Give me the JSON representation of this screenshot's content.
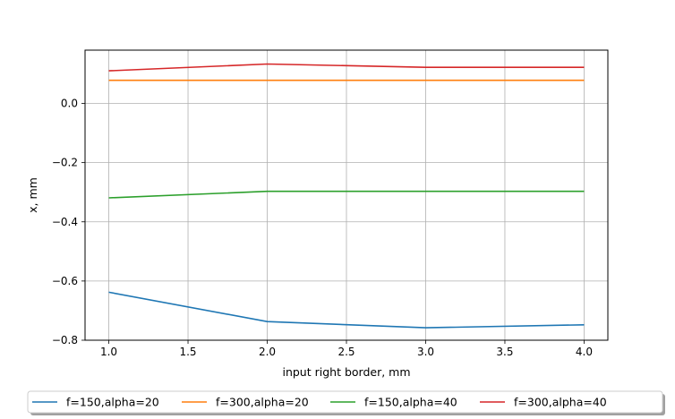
{
  "chart_data": {
    "type": "line",
    "xlabel": "input right border, mm",
    "ylabel": "x, mm",
    "xlim": [
      0.85,
      4.15
    ],
    "ylim": [
      -0.8,
      0.18
    ],
    "xticks": [
      "1.0",
      "1.5",
      "2.0",
      "2.5",
      "3.0",
      "3.5",
      "4.0"
    ],
    "yticks": [
      "−0.8",
      "−0.6",
      "−0.4",
      "−0.2",
      "0.0"
    ],
    "grid": true,
    "legend_position": "bottom-center",
    "x": [
      1.0,
      2.0,
      3.0,
      4.0
    ],
    "series": [
      {
        "name": "f=150,alpha=20",
        "color": "#1f77b4",
        "values": [
          -0.638,
          -0.737,
          -0.758,
          -0.748
        ]
      },
      {
        "name": "f=300,alpha=20",
        "color": "#ff7f0e",
        "values": [
          0.078,
          0.078,
          0.078,
          0.078
        ]
      },
      {
        "name": "f=150,alpha=40",
        "color": "#2ca02c",
        "values": [
          -0.319,
          -0.297,
          -0.297,
          -0.297
        ]
      },
      {
        "name": "f=300,alpha=40",
        "color": "#d62728",
        "values": [
          0.11,
          0.133,
          0.122,
          0.122
        ]
      }
    ]
  }
}
